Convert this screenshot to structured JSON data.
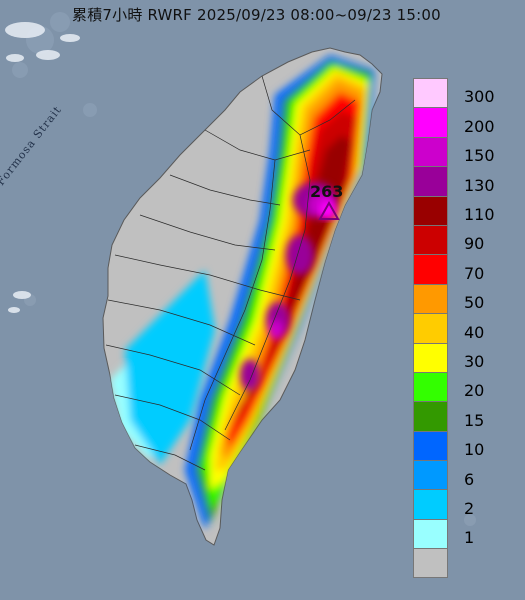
{
  "map": {
    "title": "累積7小時 RWRF 2025/09/23 08:00~09/23 15:00",
    "strait_label": "Formosa Strait",
    "peak_value": "263",
    "peak_marker_icon": "triangle-icon",
    "background_color": "#7f93a9"
  },
  "legend": {
    "levels": [
      {
        "label": "300",
        "color": "#ffc9ff"
      },
      {
        "label": "200",
        "color": "#ff00ff"
      },
      {
        "label": "150",
        "color": "#cc00cc"
      },
      {
        "label": "130",
        "color": "#990099"
      },
      {
        "label": "110",
        "color": "#990000"
      },
      {
        "label": "90",
        "color": "#cc0000"
      },
      {
        "label": "70",
        "color": "#ff0000"
      },
      {
        "label": "50",
        "color": "#ff9900"
      },
      {
        "label": "40",
        "color": "#ffcc00"
      },
      {
        "label": "30",
        "color": "#ffff00"
      },
      {
        "label": "20",
        "color": "#33ff00"
      },
      {
        "label": "15",
        "color": "#339900"
      },
      {
        "label": "10",
        "color": "#0066ff"
      },
      {
        "label": "6",
        "color": "#0099ff"
      },
      {
        "label": "2",
        "color": "#00ccff"
      },
      {
        "label": "1",
        "color": "#99ffff"
      },
      {
        "label": "",
        "color": "#c0c0c0"
      }
    ]
  }
}
